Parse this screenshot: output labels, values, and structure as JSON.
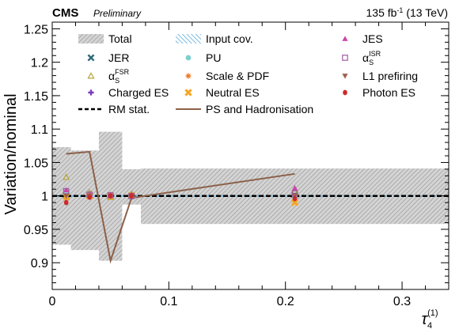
{
  "header": {
    "experiment": "CMS",
    "status": "Preliminary",
    "lumi": "135 fb",
    "lumi_exp": "-1",
    "energy": " (13 TeV)"
  },
  "chart_data": {
    "type": "line",
    "ylabel": "Variation/nominal",
    "xlabel_main": "τ",
    "xlabel_sub": "4",
    "xlabel_sup": "(1)",
    "xlim": [
      0,
      0.34
    ],
    "ylim": [
      0.86,
      1.26
    ],
    "xticks": [
      {
        "v": 0,
        "label": "0"
      },
      {
        "v": 0.1,
        "label": "0.1"
      },
      {
        "v": 0.2,
        "label": "0.2"
      },
      {
        "v": 0.3,
        "label": "0.3"
      }
    ],
    "yticks": [
      {
        "v": 0.9,
        "label": "0.9"
      },
      {
        "v": 0.95,
        "label": "0.95"
      },
      {
        "v": 1.0,
        "label": "1"
      },
      {
        "v": 1.05,
        "label": "1.05"
      },
      {
        "v": 1.1,
        "label": "1.1"
      },
      {
        "v": 1.15,
        "label": "1.15"
      },
      {
        "v": 1.2,
        "label": "1.2"
      },
      {
        "v": 1.25,
        "label": "1.25"
      }
    ],
    "bins": [
      {
        "x0": 0,
        "x1": 0.016,
        "center": 0.012
      },
      {
        "x0": 0.016,
        "x1": 0.04,
        "center": 0.032
      },
      {
        "x0": 0.04,
        "x1": 0.06,
        "center": 0.05
      },
      {
        "x0": 0.06,
        "x1": 0.076,
        "center": 0.068
      },
      {
        "x0": 0.076,
        "x1": 0.34,
        "center": 0.208
      }
    ],
    "total_band": [
      {
        "lo": 0.927,
        "hi": 1.073
      },
      {
        "lo": 0.919,
        "hi": 1.068
      },
      {
        "lo": 0.903,
        "hi": 1.096
      },
      {
        "lo": 0.987,
        "hi": 1.04
      },
      {
        "lo": 0.958,
        "hi": 1.041
      }
    ],
    "series": [
      {
        "name": "JER",
        "marker": "x",
        "color": "#2e6b7a",
        "values": [
          1.001,
          1.001,
          1.0,
          1.0,
          1.001
        ]
      },
      {
        "name": "α_S^FSR",
        "marker": "triangle-open",
        "color": "#b4a63c",
        "values": [
          1.028,
          1.005,
          0.998,
          1.003,
          1.006
        ]
      },
      {
        "name": "Charged ES",
        "marker": "plus",
        "color": "#7a3dbd",
        "values": [
          1.002,
          1.0,
          1.001,
          0.999,
          1.0
        ]
      },
      {
        "name": "PU",
        "marker": "circle",
        "color": "#7ecfd0",
        "values": [
          1.003,
          0.999,
          1.002,
          1.001,
          0.997
        ]
      },
      {
        "name": "Scale & PDF",
        "marker": "star",
        "color": "#ee7722",
        "values": [
          0.997,
          1.001,
          1.0,
          1.0,
          0.992
        ]
      },
      {
        "name": "Neutral ES",
        "marker": "x-thick",
        "color": "#f5a623",
        "values": [
          0.999,
          1.0,
          1.0,
          1.001,
          0.99
        ]
      },
      {
        "name": "JES",
        "marker": "triangle",
        "color": "#cc44aa",
        "values": [
          1.009,
          1.003,
          1.002,
          1.002,
          1.012
        ]
      },
      {
        "name": "α_S^ISR",
        "marker": "square-open",
        "color": "#a05aa0",
        "values": [
          1.007,
          1.002,
          1.001,
          1.0,
          1.004
        ]
      },
      {
        "name": "L1 prefiring",
        "marker": "triangle-down",
        "color": "#a06050",
        "values": [
          1.0,
          1.0,
          1.0,
          1.0,
          1.0
        ]
      },
      {
        "name": "Photon ES",
        "marker": "dot",
        "color": "#cc2a2a",
        "values": [
          0.99,
          0.998,
          1.0,
          1.0,
          0.996
        ]
      }
    ],
    "rm_stat": [
      1.0,
      1.0,
      1.0,
      1.0,
      1.0
    ],
    "ps_hadronisation": {
      "x": [
        0.012,
        0.032,
        0.05,
        0.068,
        0.208
      ],
      "y": [
        1.063,
        1.066,
        0.903,
        0.997,
        1.033
      ]
    },
    "legend": {
      "col1": [
        {
          "key": "total",
          "label": "Total"
        },
        {
          "key": "jer",
          "label": "JER"
        },
        {
          "key": "asfsr",
          "label": "α",
          "sub": "S",
          "sup": "FSR"
        },
        {
          "key": "charged",
          "label": "Charged ES"
        },
        {
          "key": "rmstat",
          "label": "RM stat."
        }
      ],
      "col2": [
        {
          "key": "inputcov",
          "label": "Input cov."
        },
        {
          "key": "pu",
          "label": "PU"
        },
        {
          "key": "scale",
          "label": "Scale & PDF"
        },
        {
          "key": "neutral",
          "label": "Neutral ES"
        },
        {
          "key": "ps",
          "label": "PS and Hadronisation"
        }
      ],
      "col3": [
        {
          "key": "jes",
          "label": "JES"
        },
        {
          "key": "asisr",
          "label": "α",
          "sub": "S",
          "sup": "ISR"
        },
        {
          "key": "l1",
          "label": "L1 prefiring"
        },
        {
          "key": "photon",
          "label": "Photon ES"
        }
      ]
    },
    "colors": {
      "total_band": "#bdbdbd",
      "input_cov": "#5aaad6",
      "ps_line": "#8b6048",
      "rm_stat": "#000000"
    }
  }
}
